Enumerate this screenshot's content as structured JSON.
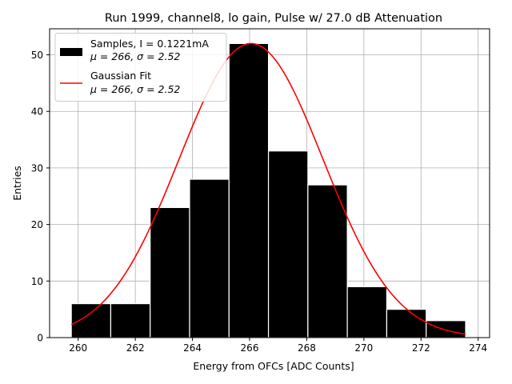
{
  "chart_data": {
    "type": "bar",
    "title": "Run 1999, channel8, lo gain, Pulse w/ 27.0 dB Attenuation",
    "xlabel": "Energy from OFCs [ADC Counts]",
    "ylabel": "Entries",
    "xlim": [
      259.0,
      274.4
    ],
    "ylim": [
      0,
      54.6
    ],
    "xticks": [
      260,
      262,
      264,
      266,
      268,
      270,
      272,
      274
    ],
    "yticks": [
      0,
      10,
      20,
      30,
      40,
      50
    ],
    "grid": true,
    "bins": [
      {
        "left": 259.76,
        "right": 261.14,
        "count": 6
      },
      {
        "left": 261.14,
        "right": 262.52,
        "count": 6
      },
      {
        "left": 262.52,
        "right": 263.9,
        "count": 23
      },
      {
        "left": 263.9,
        "right": 265.28,
        "count": 28
      },
      {
        "left": 265.28,
        "right": 266.66,
        "count": 52
      },
      {
        "left": 266.66,
        "right": 268.04,
        "count": 33
      },
      {
        "left": 268.04,
        "right": 269.42,
        "count": 27
      },
      {
        "left": 269.42,
        "right": 270.8,
        "count": 9
      },
      {
        "left": 270.8,
        "right": 272.18,
        "count": 5
      },
      {
        "left": 272.18,
        "right": 273.56,
        "count": 3
      }
    ],
    "fit": {
      "type": "gaussian",
      "mu": 266.05,
      "sigma": 2.52,
      "amplitude": 52,
      "x_range": [
        259.76,
        273.56
      ]
    },
    "legend": {
      "location": "top-left",
      "entries": [
        {
          "kind": "bar",
          "color": "#000000",
          "line1": "Samples, I = 0.1221mA",
          "line2": "μ = 266, σ = 2.52"
        },
        {
          "kind": "line",
          "color": "#ff0000",
          "line1": "Gaussian Fit",
          "line2": "μ = 266, σ = 2.52"
        }
      ]
    },
    "colors": {
      "bars": "#000000",
      "bar_edge": "#ffffff",
      "fit": "#ff0000",
      "grid": "#b0b0b0"
    }
  }
}
